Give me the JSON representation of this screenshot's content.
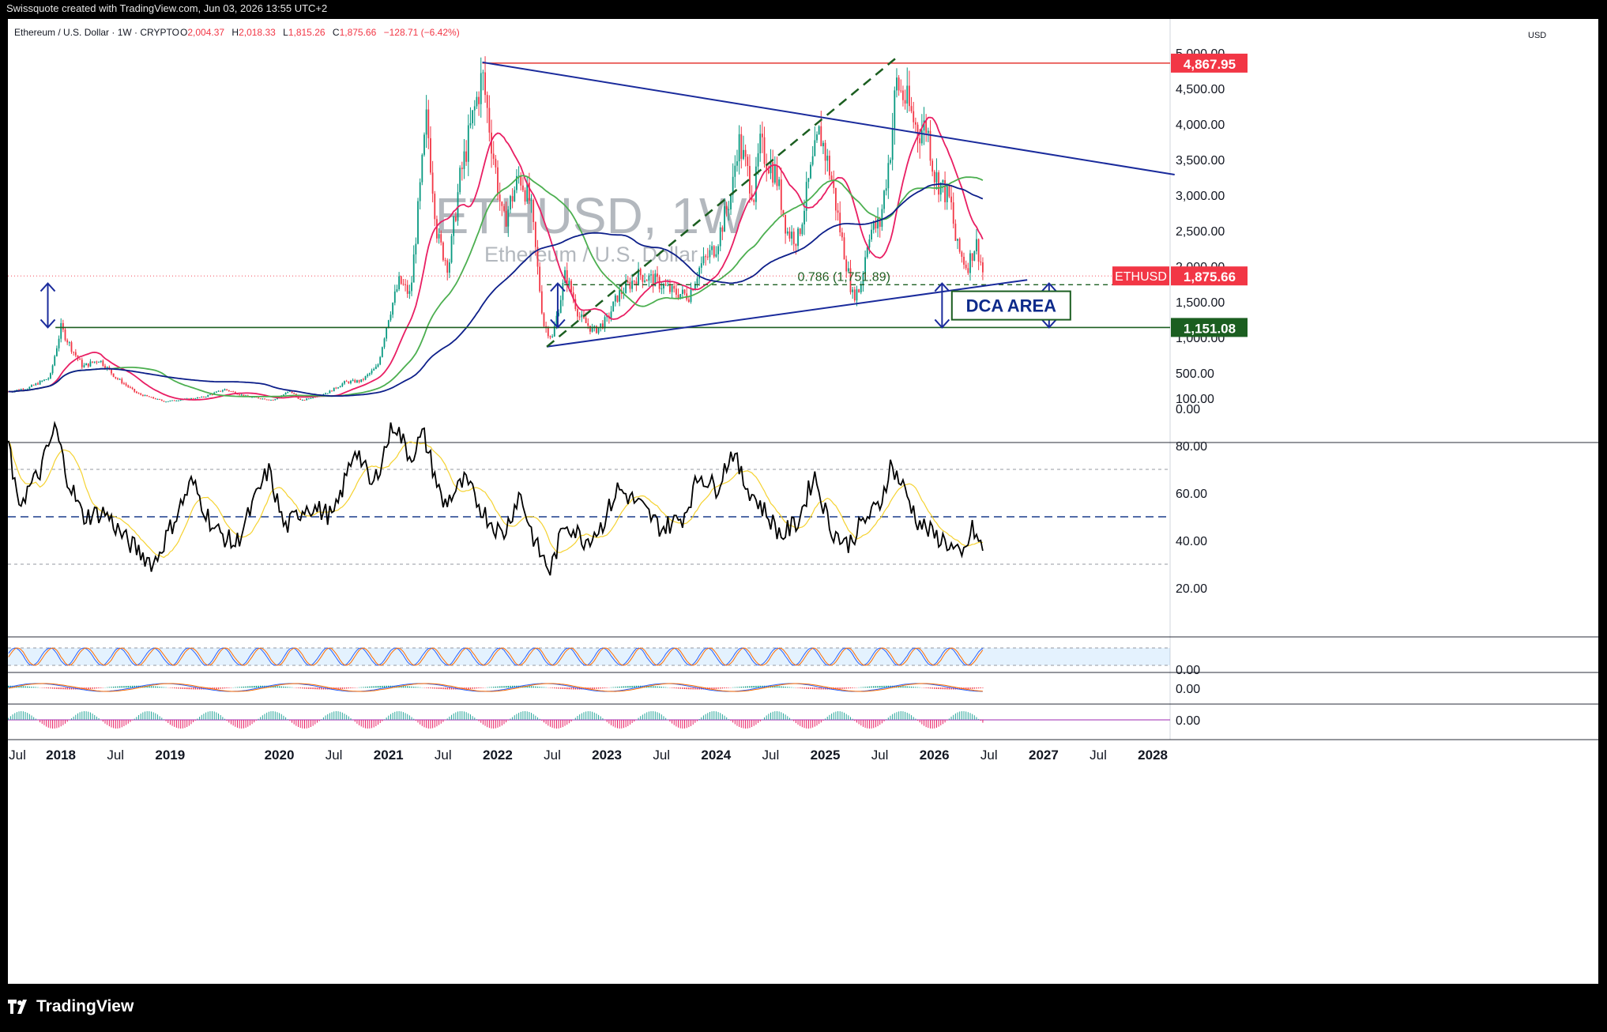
{
  "header": {
    "credit": "Swissquote created with TradingView.com, Jun 03, 2026 13:55 UTC+2",
    "legend_symbol": "Ethereum / U.S. Dollar · 1W · CRYPTO",
    "legend_o_label": "O",
    "legend_o": "2,004.37",
    "legend_h_label": "H",
    "legend_h": "2,018.33",
    "legend_l_label": "L",
    "legend_l": "1,815.26",
    "legend_c_label": "C",
    "legend_c": "1,875.66",
    "legend_change": "−128.71 (−6.42%)",
    "currency": "USD"
  },
  "watermark": {
    "title": "ETHUSD, 1W",
    "subtitle": "Ethereum / U.S. Dollar"
  },
  "annotations": {
    "dca_label": "DCA AREA",
    "fib_label": "0.786 (1,751.89)",
    "symbol_tag": "ETHUSD"
  },
  "footer": {
    "brand": "TradingView"
  },
  "colors": {
    "up": "#089981",
    "down": "#f23645",
    "ma_red": "#e91e63",
    "ma_green": "#4caf50",
    "ma_blue": "#0d1f8a",
    "trend": "#1a2b9c",
    "support": "#1b5e20",
    "resistance": "#e53935",
    "rsi": "#000000",
    "rsi_ma": "#f5d230"
  },
  "chart_data": {
    "type": "candlestick",
    "symbol": "ETHUSD",
    "interval": "1W",
    "y_unit": "USD",
    "price_ticks": [
      "0.00",
      "500.00",
      "1,000.00",
      "1,500.00",
      "2,000.00",
      "2,500.00",
      "3,000.00",
      "3,500.00",
      "4,000.00",
      "4,500.00",
      "5,000.00"
    ],
    "price_labels": [
      {
        "value": 4867.95,
        "text": "4,867.95",
        "color": "#f23645"
      },
      {
        "value": 1875.66,
        "text": "1,875.66",
        "color": "#f23645"
      },
      {
        "value": 1151.08,
        "text": "1,151.08",
        "color": "#1b5e20"
      }
    ],
    "x_labels": [
      {
        "t": 2017.5,
        "text": "Jul"
      },
      {
        "t": 2018.0,
        "text": "2018"
      },
      {
        "t": 2018.5,
        "text": "Jul"
      },
      {
        "t": 2019.0,
        "text": "2019"
      },
      {
        "t": 2020.0,
        "text": "2020"
      },
      {
        "t": 2020.5,
        "text": "Jul"
      },
      {
        "t": 2021.0,
        "text": "2021"
      },
      {
        "t": 2021.5,
        "text": "Jul"
      },
      {
        "t": 2022.0,
        "text": "2022"
      },
      {
        "t": 2022.5,
        "text": "Jul"
      },
      {
        "t": 2023.0,
        "text": "2023"
      },
      {
        "t": 2023.5,
        "text": "Jul"
      },
      {
        "t": 2024.0,
        "text": "2024"
      },
      {
        "t": 2024.5,
        "text": "Jul"
      },
      {
        "t": 2025.0,
        "text": "2025"
      },
      {
        "t": 2025.5,
        "text": "Jul"
      },
      {
        "t": 2026.0,
        "text": "2026"
      },
      {
        "t": 2026.5,
        "text": "Jul"
      },
      {
        "t": 2027.0,
        "text": "2027"
      },
      {
        "t": 2027.5,
        "text": "Jul"
      },
      {
        "t": 2028.0,
        "text": "2028"
      }
    ],
    "price_keypoints": [
      [
        2017.52,
        250
      ],
      [
        2017.7,
        300
      ],
      [
        2017.9,
        450
      ],
      [
        2018.0,
        1150
      ],
      [
        2018.1,
        850
      ],
      [
        2018.2,
        600
      ],
      [
        2018.35,
        700
      ],
      [
        2018.5,
        450
      ],
      [
        2018.7,
        220
      ],
      [
        2018.95,
        110
      ],
      [
        2019.3,
        170
      ],
      [
        2019.5,
        280
      ],
      [
        2019.7,
        180
      ],
      [
        2019.95,
        130
      ],
      [
        2020.1,
        260
      ],
      [
        2020.2,
        120
      ],
      [
        2020.45,
        240
      ],
      [
        2020.6,
        380
      ],
      [
        2020.75,
        400
      ],
      [
        2020.9,
        600
      ],
      [
        2021.0,
        1300
      ],
      [
        2021.1,
        1800
      ],
      [
        2021.2,
        1600
      ],
      [
        2021.35,
        4100
      ],
      [
        2021.45,
        2400
      ],
      [
        2021.55,
        2000
      ],
      [
        2021.65,
        3200
      ],
      [
        2021.8,
        4300
      ],
      [
        2021.86,
        4700
      ],
      [
        2021.95,
        3700
      ],
      [
        2022.05,
        2600
      ],
      [
        2022.2,
        3300
      ],
      [
        2022.3,
        2900
      ],
      [
        2022.42,
        1200
      ],
      [
        2022.5,
        1000
      ],
      [
        2022.62,
        1900
      ],
      [
        2022.75,
        1300
      ],
      [
        2022.88,
        1100
      ],
      [
        2023.0,
        1250
      ],
      [
        2023.1,
        1600
      ],
      [
        2023.3,
        1900
      ],
      [
        2023.45,
        1800
      ],
      [
        2023.6,
        1650
      ],
      [
        2023.75,
        1600
      ],
      [
        2023.85,
        2000
      ],
      [
        2024.0,
        2300
      ],
      [
        2024.15,
        3100
      ],
      [
        2024.2,
        3800
      ],
      [
        2024.35,
        3000
      ],
      [
        2024.4,
        3700
      ],
      [
        2024.55,
        3300
      ],
      [
        2024.65,
        2500
      ],
      [
        2024.75,
        2400
      ],
      [
        2024.85,
        3200
      ],
      [
        2024.95,
        3900
      ],
      [
        2025.05,
        3300
      ],
      [
        2025.15,
        2400
      ],
      [
        2025.25,
        1600
      ],
      [
        2025.32,
        1700
      ],
      [
        2025.4,
        2500
      ],
      [
        2025.5,
        2600
      ],
      [
        2025.6,
        3700
      ],
      [
        2025.65,
        4600
      ],
      [
        2025.75,
        4300
      ],
      [
        2025.85,
        3900
      ],
      [
        2025.93,
        4000
      ],
      [
        2026.0,
        3300
      ],
      [
        2026.08,
        3100
      ],
      [
        2026.15,
        2900
      ],
      [
        2026.2,
        2300
      ],
      [
        2026.3,
        2000
      ],
      [
        2026.38,
        2350
      ],
      [
        2026.42,
        2100
      ],
      [
        2026.45,
        1876
      ]
    ],
    "drawings": {
      "resistance_level": 4867.95,
      "support_level": 1151.08,
      "fib_level": 1751.89,
      "descending_trendline": [
        [
          2021.86,
          4880
        ],
        [
          2028.2,
          3300
        ]
      ],
      "ascending_trendline": [
        [
          2022.45,
          880
        ],
        [
          2026.85,
          1820
        ]
      ],
      "dashed_arrow": [
        [
          2022.45,
          880
        ],
        [
          2025.68,
          4980
        ]
      ]
    },
    "rsi": {
      "ticks": [
        "20.00",
        "40.00",
        "60.00",
        "80.00",
        "100.00"
      ],
      "levels": [
        70,
        50,
        30
      ],
      "keypoints": [
        [
          2017.52,
          82
        ],
        [
          2017.6,
          55
        ],
        [
          2017.8,
          68
        ],
        [
          2017.95,
          88
        ],
        [
          2018.05,
          68
        ],
        [
          2018.2,
          50
        ],
        [
          2018.4,
          52
        ],
        [
          2018.6,
          40
        ],
        [
          2018.85,
          30
        ],
        [
          2019.2,
          65
        ],
        [
          2019.4,
          45
        ],
        [
          2019.6,
          38
        ],
        [
          2019.9,
          70
        ],
        [
          2020.05,
          45
        ],
        [
          2020.25,
          55
        ],
        [
          2020.5,
          50
        ],
        [
          2020.7,
          80
        ],
        [
          2020.85,
          62
        ],
        [
          2021.05,
          90
        ],
        [
          2021.2,
          75
        ],
        [
          2021.32,
          85
        ],
        [
          2021.5,
          55
        ],
        [
          2021.7,
          65
        ],
        [
          2021.9,
          50
        ],
        [
          2022.05,
          42
        ],
        [
          2022.2,
          60
        ],
        [
          2022.35,
          38
        ],
        [
          2022.48,
          27
        ],
        [
          2022.62,
          48
        ],
        [
          2022.8,
          40
        ],
        [
          2022.95,
          46
        ],
        [
          2023.1,
          62
        ],
        [
          2023.3,
          55
        ],
        [
          2023.5,
          45
        ],
        [
          2023.7,
          50
        ],
        [
          2023.85,
          68
        ],
        [
          2024.0,
          62
        ],
        [
          2024.15,
          78
        ],
        [
          2024.25,
          65
        ],
        [
          2024.45,
          52
        ],
        [
          2024.6,
          42
        ],
        [
          2024.75,
          48
        ],
        [
          2024.9,
          68
        ],
        [
          2025.05,
          45
        ],
        [
          2025.2,
          38
        ],
        [
          2025.35,
          48
        ],
        [
          2025.5,
          55
        ],
        [
          2025.6,
          72
        ],
        [
          2025.72,
          62
        ],
        [
          2025.85,
          48
        ],
        [
          2026.0,
          42
        ],
        [
          2026.1,
          40
        ],
        [
          2026.25,
          32
        ],
        [
          2026.35,
          45
        ],
        [
          2026.42,
          38
        ],
        [
          2026.45,
          35
        ]
      ]
    },
    "stoch_rsi": {
      "ticks": [
        "0.00"
      ]
    },
    "macd": {
      "ticks": [
        "0.00"
      ]
    },
    "histogram": {
      "ticks": [
        "0.00"
      ]
    }
  }
}
